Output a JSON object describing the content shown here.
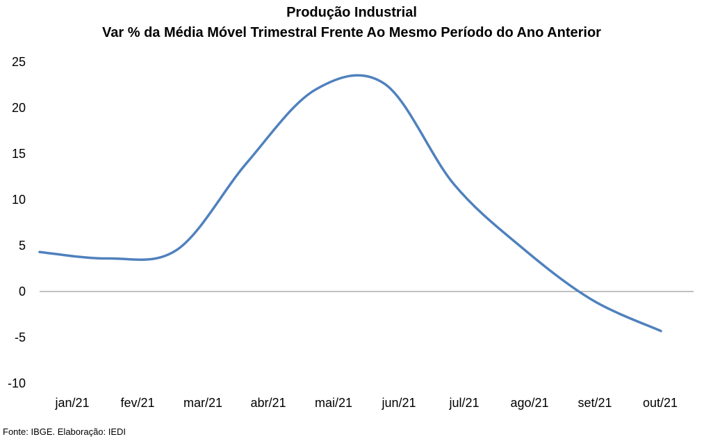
{
  "chart_data": {
    "type": "line",
    "title": "Produção Industrial",
    "subtitle": "Var % da Média Móvel Trimestral Frente Ao Mesmo Período do Ano Anterior",
    "xlabel": "",
    "ylabel": "",
    "categories": [
      "jan/21",
      "fev/21",
      "mar/21",
      "abr/21",
      "mai/21",
      "jun/21",
      "jul/21",
      "ago/21",
      "set/21",
      "out/21"
    ],
    "y_ticks": [
      "25",
      "20",
      "15",
      "10",
      "5",
      "0",
      "-5",
      "-10"
    ],
    "ylim": [
      -10,
      25
    ],
    "grid": false,
    "legend": "none",
    "series": [
      {
        "values": [
          4.3,
          3.6,
          4.6,
          14.0,
          22.0,
          22.6,
          11.7,
          4.7,
          -0.9,
          -4.3
        ],
        "color": "#4F81BD"
      }
    ],
    "source": "Fonte: IBGE. Elaboração: IEDI",
    "colors": {
      "line": "#4F81BD",
      "zero_line": "#808080",
      "text": "#000000"
    }
  }
}
